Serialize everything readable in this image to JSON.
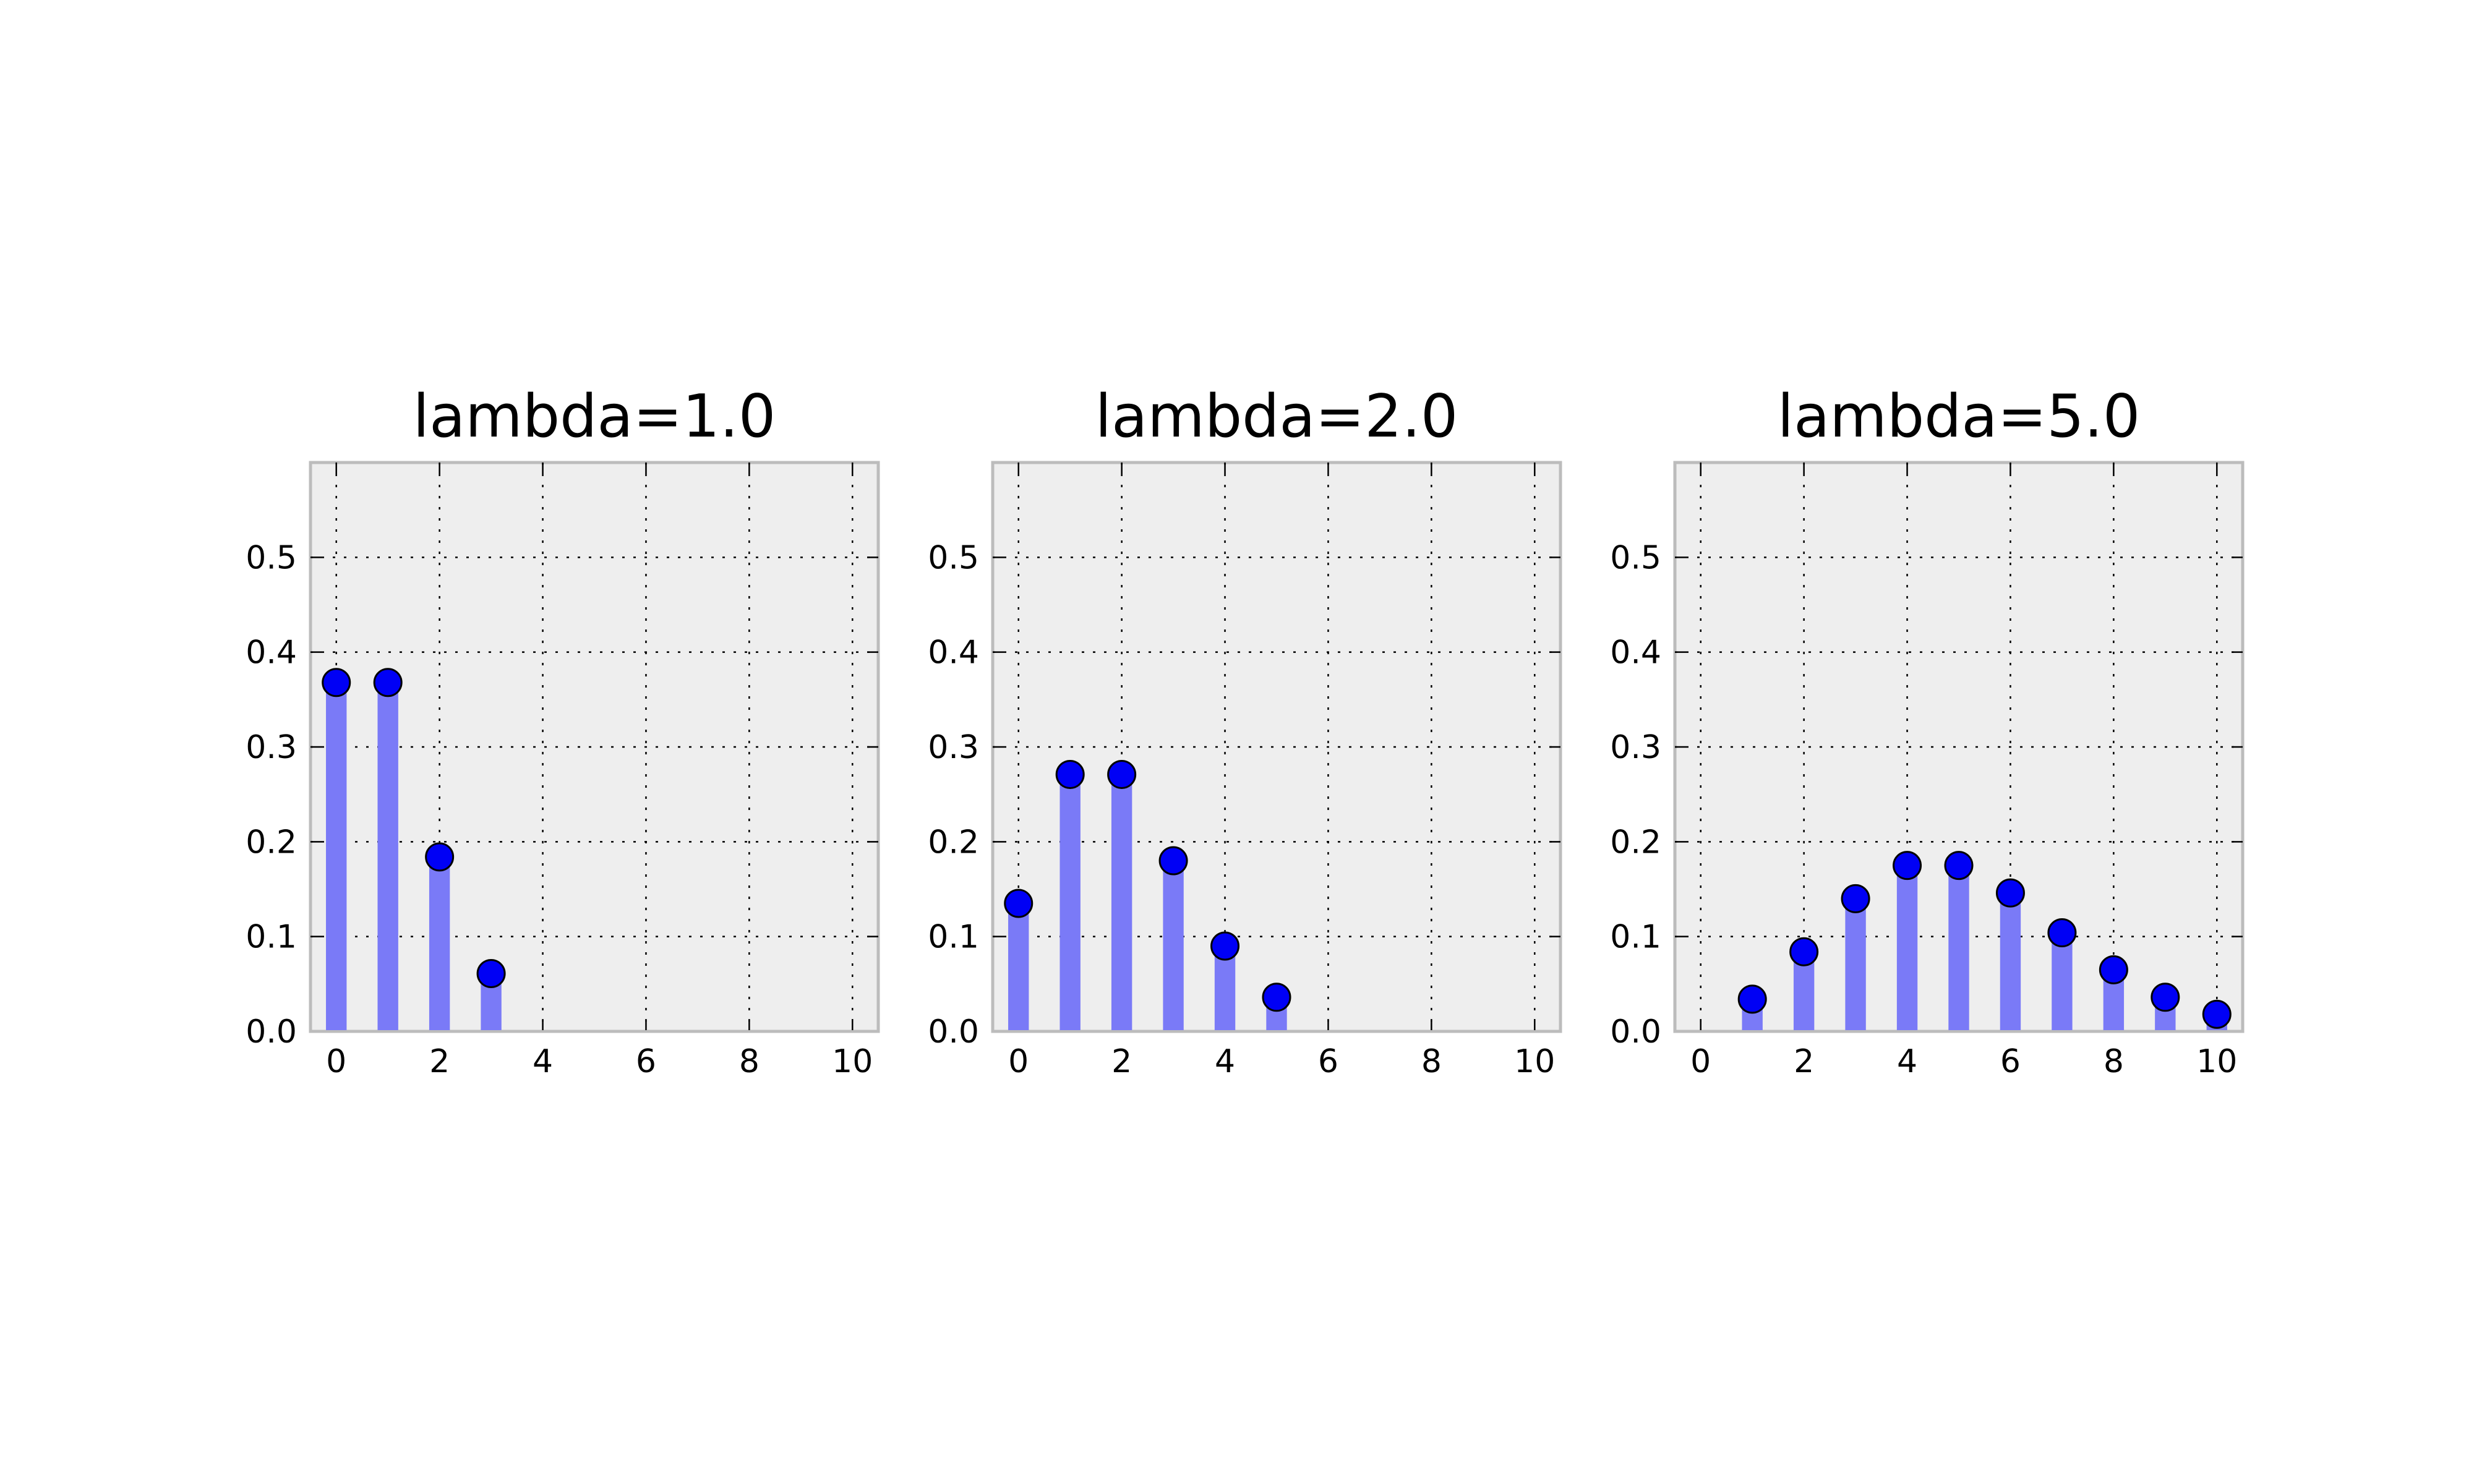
{
  "chart_data": [
    {
      "type": "bar",
      "title": "lambda=1.0",
      "x": [
        0,
        1,
        2,
        3
      ],
      "values": [
        0.368,
        0.368,
        0.184,
        0.061
      ],
      "xlim": [
        -0.5,
        10.5
      ],
      "ylim": [
        0,
        0.6
      ],
      "xticks": [
        "0",
        "2",
        "4",
        "6",
        "8",
        "10"
      ],
      "yticks": [
        "0.0",
        "0.1",
        "0.2",
        "0.3",
        "0.4",
        "0.5"
      ],
      "grid": true,
      "markers": "filled circles at bar tops",
      "colors": {
        "bar": "#7a7af7",
        "marker": "#0000f5",
        "background": "#eeeeee"
      }
    },
    {
      "type": "bar",
      "title": "lambda=2.0",
      "x": [
        0,
        1,
        2,
        3,
        4,
        5
      ],
      "values": [
        0.135,
        0.271,
        0.271,
        0.18,
        0.09,
        0.036
      ],
      "xlim": [
        -0.5,
        10.5
      ],
      "ylim": [
        0,
        0.6
      ],
      "xticks": [
        "0",
        "2",
        "4",
        "6",
        "8",
        "10"
      ],
      "yticks": [
        "0.0",
        "0.1",
        "0.2",
        "0.3",
        "0.4",
        "0.5"
      ],
      "grid": true,
      "markers": "filled circles at bar tops",
      "colors": {
        "bar": "#7a7af7",
        "marker": "#0000f5",
        "background": "#eeeeee"
      }
    },
    {
      "type": "bar",
      "title": "lambda=5.0",
      "x": [
        1,
        2,
        3,
        4,
        5,
        6,
        7,
        8,
        9,
        10
      ],
      "values": [
        0.034,
        0.084,
        0.14,
        0.175,
        0.175,
        0.146,
        0.104,
        0.065,
        0.036,
        0.018
      ],
      "xlim": [
        -0.5,
        10.5
      ],
      "ylim": [
        0,
        0.6
      ],
      "xticks": [
        "0",
        "2",
        "4",
        "6",
        "8",
        "10"
      ],
      "yticks": [
        "0.0",
        "0.1",
        "0.2",
        "0.3",
        "0.4",
        "0.5"
      ],
      "grid": true,
      "markers": "filled circles at bar tops",
      "colors": {
        "bar": "#7a7af7",
        "marker": "#0000f5",
        "background": "#eeeeee"
      }
    }
  ]
}
